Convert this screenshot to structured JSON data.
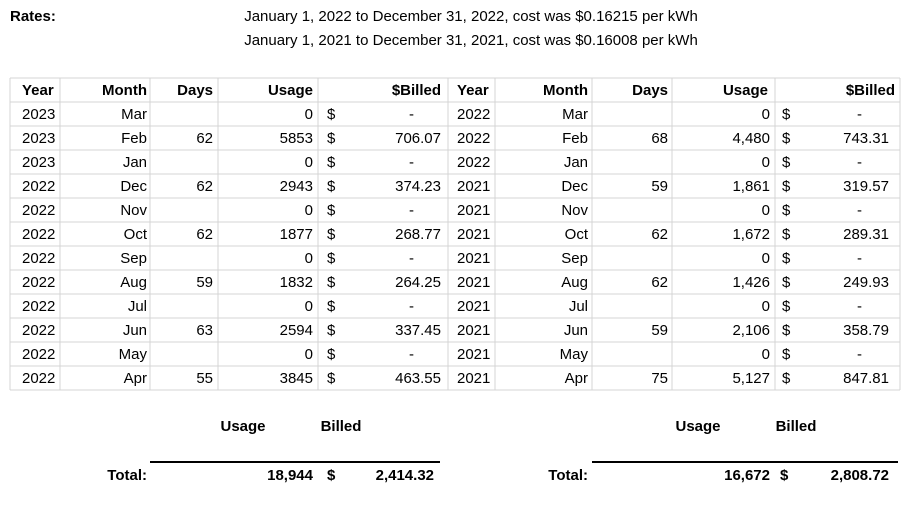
{
  "header": {
    "label": "Rates:",
    "rates": [
      "January 1, 2022 to December 31, 2022, cost was $0.16215 per kWh",
      "January 1, 2021 to December 31, 2021, cost was $0.16008 per kWh"
    ]
  },
  "table": {
    "columns": [
      "Year",
      "Month",
      "Days",
      "Usage",
      "$Billed",
      "Year",
      "Month",
      "Days",
      "Usage",
      "$Billed"
    ],
    "rows": [
      [
        "2023",
        "Mar",
        null,
        "0",
        "$",
        "-",
        "2022",
        "Mar",
        null,
        "0",
        "$",
        "-"
      ],
      [
        "2023",
        "Feb",
        "62",
        "5853",
        "$",
        "706.07",
        "2022",
        "Feb",
        "68",
        "4,480",
        "$",
        "743.31"
      ],
      [
        "2023",
        "Jan",
        null,
        "0",
        "$",
        "-",
        "2022",
        "Jan",
        null,
        "0",
        "$",
        "-"
      ],
      [
        "2022",
        "Dec",
        "62",
        "2943",
        "$",
        "374.23",
        "2021",
        "Dec",
        "59",
        "1,861",
        "$",
        "319.57"
      ],
      [
        "2022",
        "Nov",
        null,
        "0",
        "$",
        "-",
        "2021",
        "Nov",
        null,
        "0",
        "$",
        "-"
      ],
      [
        "2022",
        "Oct",
        "62",
        "1877",
        "$",
        "268.77",
        "2021",
        "Oct",
        "62",
        "1,672",
        "$",
        "289.31"
      ],
      [
        "2022",
        "Sep",
        null,
        "0",
        "$",
        "-",
        "2021",
        "Sep",
        null,
        "0",
        "$",
        "-"
      ],
      [
        "2022",
        "Aug",
        "59",
        "1832",
        "$",
        "264.25",
        "2021",
        "Aug",
        "62",
        "1,426",
        "$",
        "249.93"
      ],
      [
        "2022",
        "Jul",
        null,
        "0",
        "$",
        "-",
        "2021",
        "Jul",
        null,
        "0",
        "$",
        "-"
      ],
      [
        "2022",
        "Jun",
        "63",
        "2594",
        "$",
        "337.45",
        "2021",
        "Jun",
        "59",
        "2,106",
        "$",
        "358.79"
      ],
      [
        "2022",
        "May",
        null,
        "0",
        "$",
        "-",
        "2021",
        "May",
        null,
        "0",
        "$",
        "-"
      ],
      [
        "2022",
        "Apr",
        "55",
        "3845",
        "$",
        "463.55",
        "2021",
        "Apr",
        "75",
        "5,127",
        "$",
        "847.81"
      ]
    ]
  },
  "totals": [
    {
      "headers": [
        "Usage",
        "Billed"
      ],
      "label": "Total:",
      "usage": "18,944",
      "currency": "$",
      "billed": "2,414.32"
    },
    {
      "headers": [
        "Usage",
        "Billed"
      ],
      "label": "Total:",
      "usage": "16,672",
      "currency": "$",
      "billed": "2,808.72"
    }
  ]
}
